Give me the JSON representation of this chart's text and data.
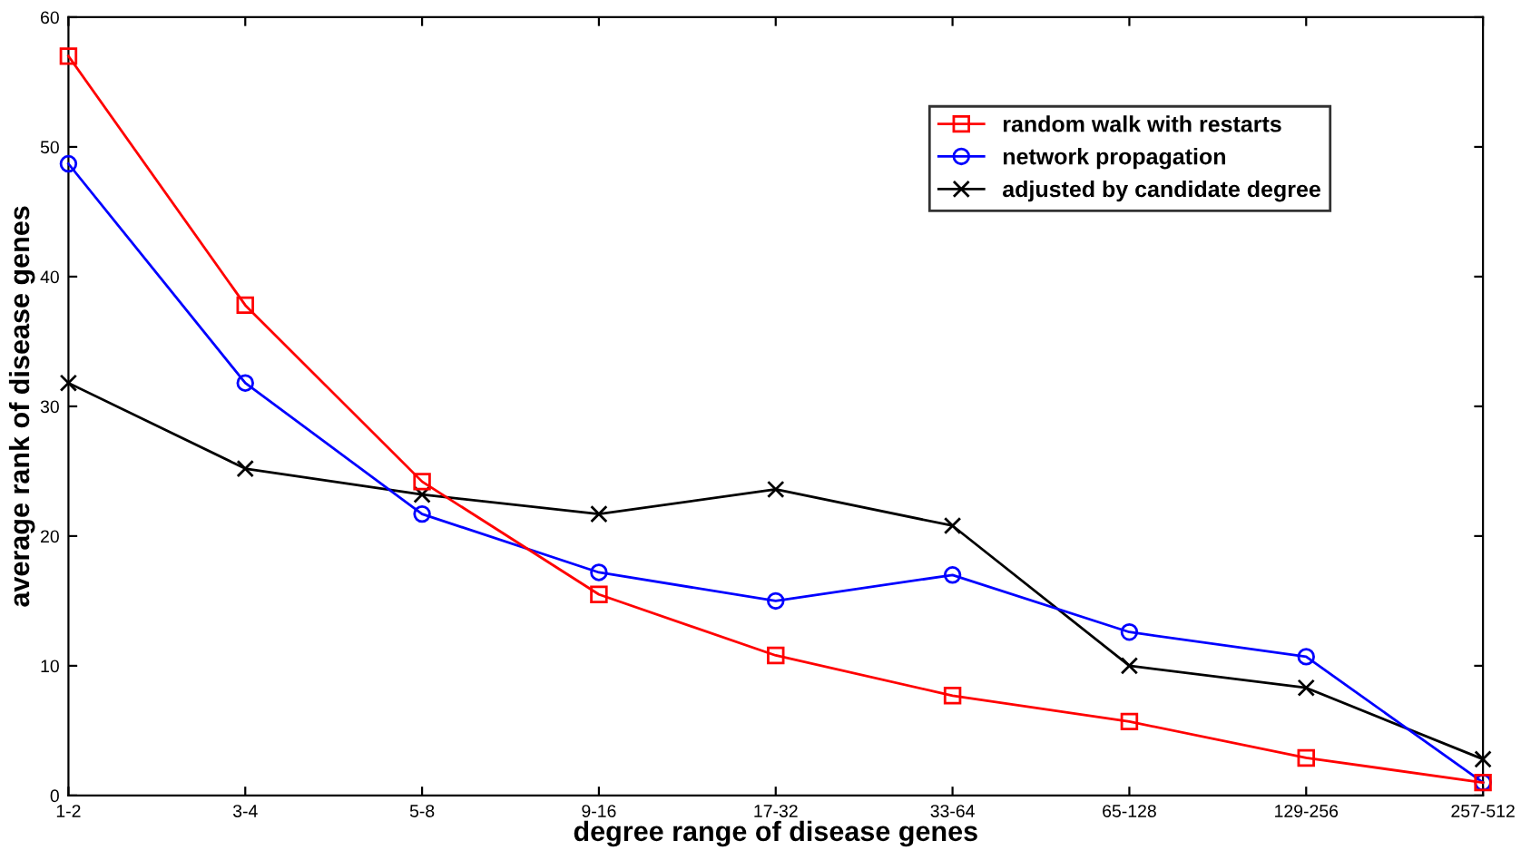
{
  "chart_data": {
    "type": "line",
    "xlabel": "degree range of disease genes",
    "ylabel": "average rank of disease genes",
    "categories": [
      "1-2",
      "3-4",
      "5-8",
      "9-16",
      "17-32",
      "33-64",
      "65-128",
      "129-256",
      "257-512"
    ],
    "series": [
      {
        "name": "random walk with restarts",
        "color": "#ff0000",
        "marker": "square",
        "values": [
          57,
          37.8,
          24.2,
          15.5,
          10.8,
          7.7,
          5.7,
          2.9,
          1.0
        ]
      },
      {
        "name": "network propagation",
        "color": "#0000ff",
        "marker": "circle",
        "values": [
          48.7,
          31.8,
          21.7,
          17.2,
          15.0,
          17.0,
          12.6,
          10.7,
          1.0
        ]
      },
      {
        "name": "adjusted by candidate degree",
        "color": "#000000",
        "marker": "cross",
        "values": [
          31.8,
          25.2,
          23.2,
          21.7,
          23.6,
          20.8,
          10.0,
          8.3,
          2.8
        ]
      }
    ],
    "ylim": [
      0,
      60
    ],
    "yticks": [
      0,
      10,
      20,
      30,
      40,
      50,
      60
    ],
    "grid": false,
    "legend": "top right",
    "line_style": "solid"
  }
}
